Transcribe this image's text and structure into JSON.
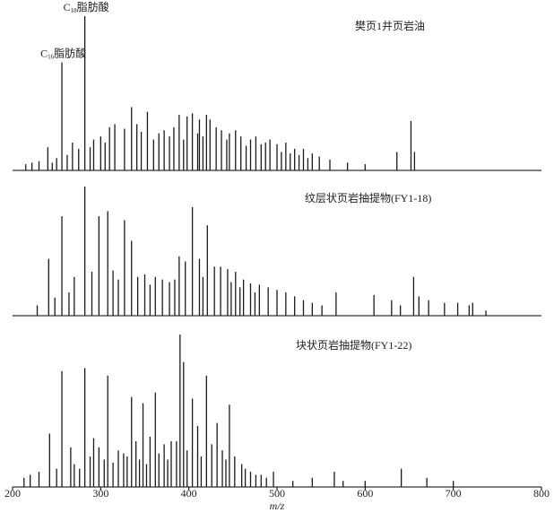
{
  "chart_data": [
    {
      "type": "stem",
      "title": "樊页1井页岩油",
      "color": "#1a1a1a",
      "xlim": [
        200,
        800
      ],
      "ylim": [
        0,
        100
      ],
      "annotations": [
        {
          "base": "C",
          "sub": "18",
          "text": "脂肪酸",
          "x": 282
        },
        {
          "base": "C",
          "sub": "16",
          "text": "脂肪酸",
          "x": 256
        }
      ],
      "x": [
        282,
        256,
        335,
        353,
        389,
        398,
        404,
        412,
        420,
        424,
        341,
        310,
        316,
        327,
        366,
        372,
        378,
        431,
        437,
        446,
        453,
        459,
        470,
        476,
        487,
        492,
        500,
        510,
        520,
        530,
        540,
        548,
        560,
        580,
        600,
        636,
        652,
        656,
        240,
        230,
        250,
        268,
        292,
        300,
        305,
        262,
        275,
        288,
        346,
        360,
        383,
        394,
        410,
        416,
        443,
        465,
        482,
        505,
        515,
        525,
        535,
        215,
        222,
        245
      ],
      "values": [
        100,
        70,
        41,
        38,
        36,
        35,
        37,
        33,
        36,
        33,
        30,
        28,
        30,
        27,
        24,
        26,
        22,
        28,
        26,
        24,
        26,
        22,
        20,
        22,
        18,
        20,
        17,
        18,
        14,
        14,
        11,
        9,
        7,
        5,
        4,
        12,
        32,
        12,
        15,
        6,
        8,
        18,
        20,
        22,
        18,
        10,
        14,
        15,
        25,
        20,
        28,
        20,
        24,
        22,
        20,
        16,
        17,
        12,
        11,
        10,
        8,
        4,
        5,
        5
      ]
    },
    {
      "type": "stem",
      "title": "纹层状页岩抽提物(FY1-18)",
      "color": "#1a1a1a",
      "xlim": [
        200,
        800
      ],
      "ylim": [
        0,
        100
      ],
      "x": [
        282,
        256,
        308,
        298,
        327,
        404,
        335,
        421,
        389,
        396,
        412,
        429,
        436,
        444,
        453,
        241,
        270,
        290,
        314,
        350,
        362,
        370,
        378,
        462,
        470,
        480,
        490,
        500,
        510,
        520,
        530,
        540,
        551,
        567,
        610,
        630,
        640,
        655,
        661,
        672,
        690,
        705,
        718,
        722,
        737,
        228,
        248,
        264,
        320,
        342,
        356,
        384,
        416,
        448,
        458,
        475
      ],
      "values": [
        100,
        77,
        81,
        77,
        74,
        84,
        58,
        70,
        46,
        42,
        44,
        38,
        38,
        36,
        34,
        44,
        30,
        34,
        35,
        32,
        30,
        28,
        26,
        28,
        25,
        24,
        22,
        20,
        18,
        15,
        12,
        10,
        8,
        18,
        16,
        12,
        8,
        30,
        15,
        12,
        10,
        10,
        8,
        10,
        4,
        8,
        14,
        18,
        28,
        30,
        24,
        28,
        30,
        26,
        22,
        18
      ]
    },
    {
      "type": "stem",
      "title": "块状页岩抽提物(FY1-22)",
      "color": "#1a1a1a",
      "xlim": [
        200,
        800
      ],
      "ylim": [
        0,
        100
      ],
      "xlabel": "m/z",
      "xticks": [
        200,
        300,
        400,
        500,
        600,
        700,
        800
      ],
      "x": [
        390,
        394,
        282,
        256,
        308,
        420,
        335,
        362,
        348,
        404,
        410,
        432,
        446,
        242,
        292,
        298,
        266,
        320,
        326,
        340,
        356,
        372,
        380,
        386,
        398,
        426,
        438,
        452,
        460,
        470,
        482,
        496,
        518,
        540,
        565,
        575,
        600,
        641,
        670,
        700,
        213,
        220,
        230,
        250,
        270,
        276,
        288,
        304,
        314,
        330,
        344,
        352,
        366,
        376,
        414,
        442,
        464,
        476,
        488
      ],
      "values": [
        100,
        82,
        78,
        76,
        73,
        73,
        59,
        62,
        55,
        58,
        40,
        42,
        54,
        35,
        32,
        26,
        26,
        24,
        22,
        30,
        33,
        28,
        30,
        30,
        24,
        28,
        24,
        20,
        15,
        10,
        8,
        10,
        4,
        6,
        10,
        4,
        4,
        12,
        6,
        4,
        6,
        8,
        10,
        12,
        15,
        12,
        20,
        18,
        16,
        20,
        18,
        15,
        22,
        18,
        20,
        18,
        12,
        8,
        6
      ]
    }
  ]
}
